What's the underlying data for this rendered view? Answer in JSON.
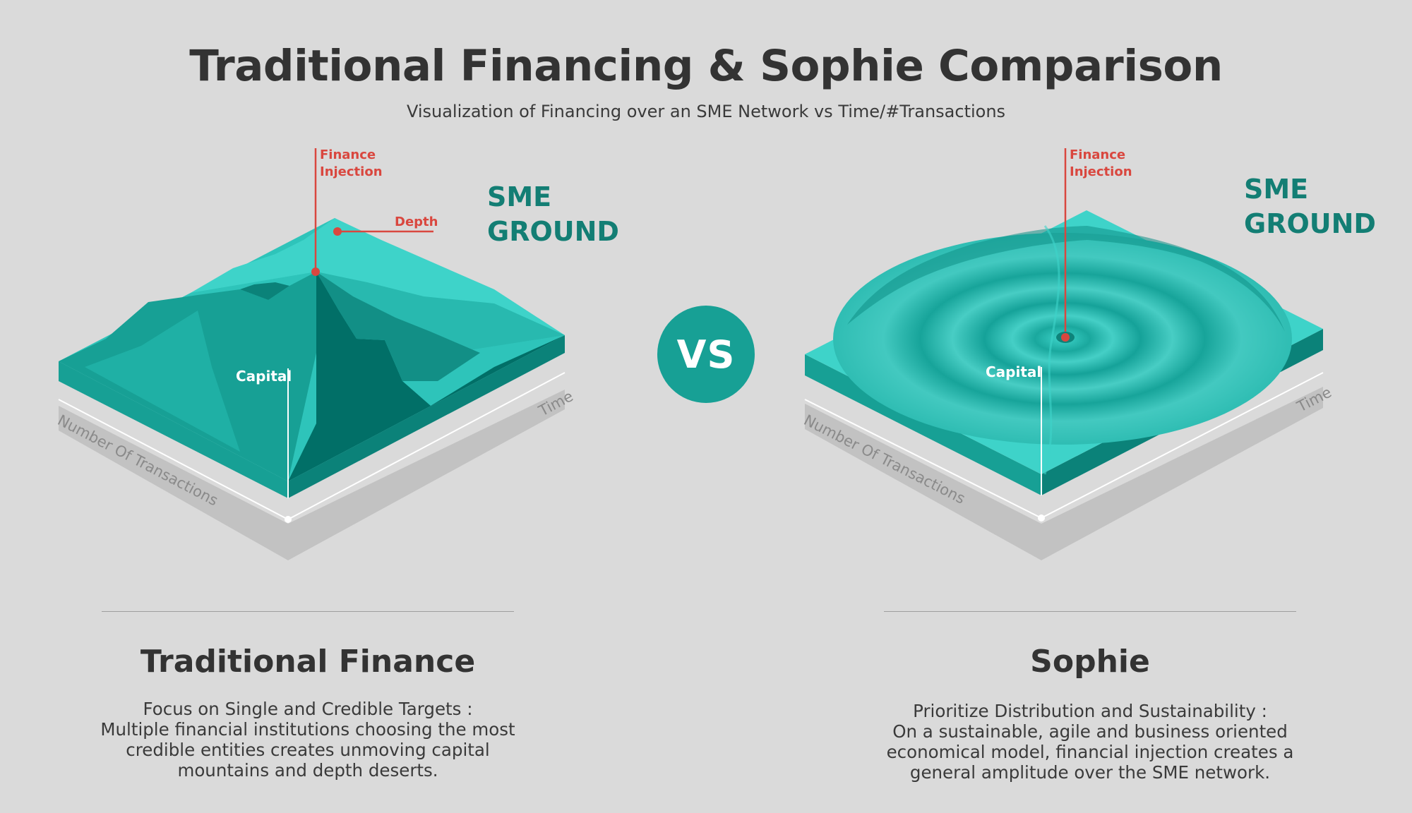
{
  "header": {
    "title": "Traditional Financing & Sophie Comparison",
    "subtitle": "Visualization of Financing over an SME Network vs Time/#Transactions"
  },
  "vs_label": "VS",
  "left_diagram": {
    "ground_label": [
      "SME",
      "GROUND"
    ],
    "injection_label": [
      "Finance",
      "Injection"
    ],
    "depth_label": "Depth",
    "capital_label": "Capital",
    "x_axis_label": "Number Of Transactions",
    "y_axis_label": "Time"
  },
  "right_diagram": {
    "ground_label": [
      "SME",
      "GROUND"
    ],
    "injection_label": [
      "Finance",
      "Injection"
    ],
    "capital_label": "Capital",
    "x_axis_label": "Number Of Transactions",
    "y_axis_label": "Time"
  },
  "left_section": {
    "title": "Traditional Finance",
    "body": [
      "Focus on Single and Credible Targets :",
      "Multiple financial institutions choosing the most",
      "credible entities creates unmoving capital",
      "mountains and depth deserts."
    ]
  },
  "right_section": {
    "title": "Sophie",
    "body": [
      "Prioritize Distribution and Sustainability :",
      "On a sustainable, agile and business oriented",
      "economical model, financial injection creates a",
      "general amplitude over the SME network."
    ]
  },
  "colors": {
    "background": "#dadada",
    "teal_light": "#3ed3c9",
    "teal_mid": "#17a095",
    "teal_dark": "#016f67",
    "ground_text": "#137e74",
    "accent_red": "#d9473f"
  }
}
